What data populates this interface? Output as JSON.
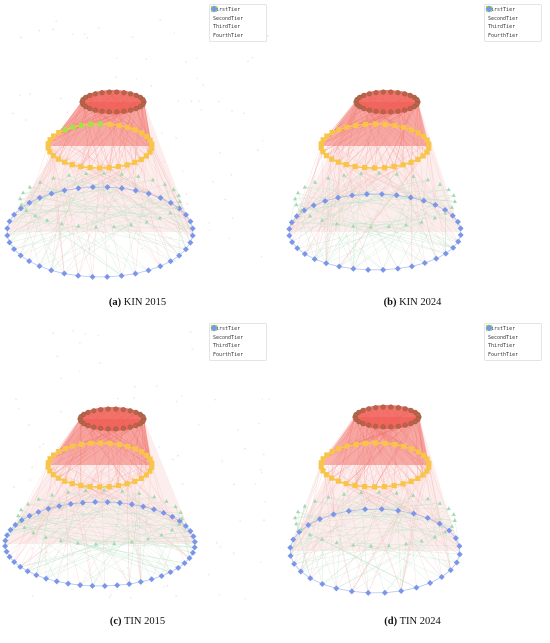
{
  "legend": {
    "entries": [
      {
        "label": "FirstTier",
        "color": "#e05a4f",
        "shape": "circle"
      },
      {
        "label": "SecondTier",
        "color": "#9fe040",
        "shape": "square"
      },
      {
        "label": "ThirdTier",
        "color": "#a3d8b0",
        "shape": "triangle"
      },
      {
        "label": "FourthTier",
        "color": "#7b96e8",
        "shape": "diamond"
      }
    ]
  },
  "panels": [
    {
      "letter": "(a)",
      "title": "KIN 2015",
      "tier1": 26,
      "tier2": 34,
      "tier3": 28,
      "tier4": 40,
      "second_color": "#f8c44a",
      "noise": true
    },
    {
      "letter": "(b)",
      "title": "KIN 2024",
      "tier1": 26,
      "tier2": 34,
      "tier3": 28,
      "tier4": 36,
      "second_color": "#f8c44a",
      "noise": false
    },
    {
      "letter": "(c)",
      "title": "TIN 2015",
      "tier1": 26,
      "tier2": 34,
      "tier3": 28,
      "tier4": 48,
      "second_color": "#f8c44a",
      "noise": true
    },
    {
      "letter": "(d)",
      "title": "TIN 2024",
      "tier1": 26,
      "tier2": 34,
      "tier3": 28,
      "tier4": 32,
      "second_color": "#f8c44a",
      "noise": false
    }
  ]
}
